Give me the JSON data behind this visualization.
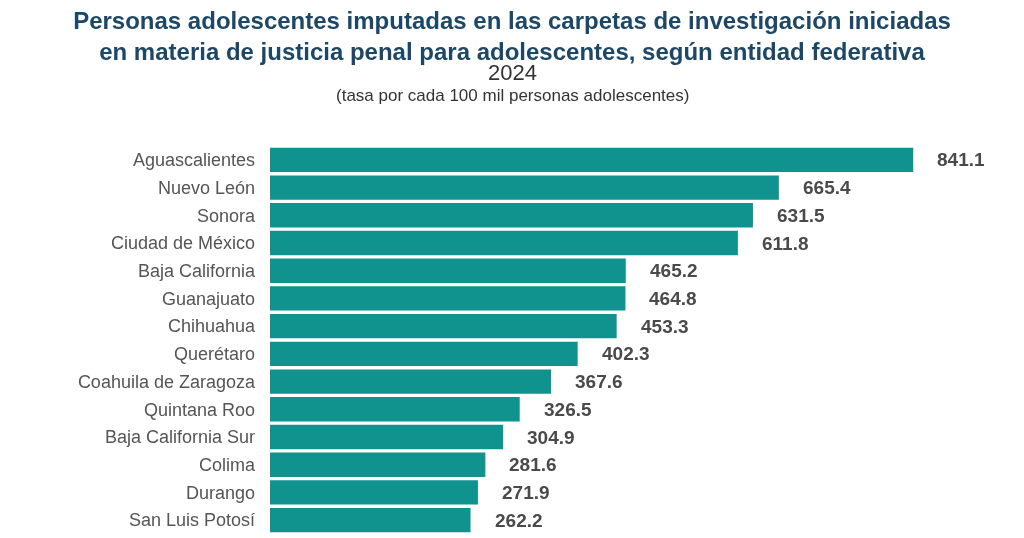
{
  "chart_data": {
    "type": "bar",
    "orientation": "horizontal",
    "title": "Personas adolescentes imputadas en las carpetas de investigación iniciadas\nen materia de justicia penal para adolescentes, según entidad federativa",
    "subtitle": "2024\n(tasa por cada 100 mil personas adolescentes)",
    "categories": [
      "Aguascalientes",
      "Nuevo León",
      "Sonora",
      "Ciudad de México",
      "Baja California",
      "Guanajuato",
      "Chihuahua",
      "Querétaro",
      "Coahuila de Zaragoza",
      "Quintana Roo",
      "Baja California Sur",
      "Colima",
      "Durango",
      "San Luis Potosí"
    ],
    "values": [
      841.1,
      665.4,
      631.5,
      611.8,
      465.2,
      464.8,
      453.3,
      402.3,
      367.6,
      326.5,
      304.9,
      281.6,
      271.9,
      262.2
    ],
    "color": "#10928f",
    "data_labels": true,
    "legend": false
  }
}
